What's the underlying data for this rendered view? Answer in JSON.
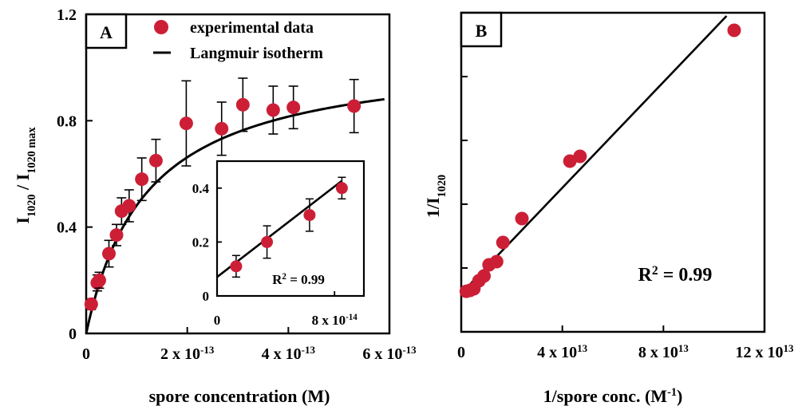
{
  "chart_data": [
    {
      "panel": "A",
      "type": "scatter",
      "xlabel": "spore concentration (M)",
      "ylabel_main": "I",
      "ylabel_sub1": "1020",
      "ylabel_sep": " / I",
      "ylabel_sub2": "1020 max",
      "xlim": [
        0,
        6e-13
      ],
      "ylim": [
        0,
        1.2
      ],
      "x_ticks": [
        {
          "v": 0,
          "m": "0",
          "e": ""
        },
        {
          "v": 2e-13,
          "m": "2 x 10",
          "e": "-13"
        },
        {
          "v": 4e-13,
          "m": "4 x 10",
          "e": "-13"
        },
        {
          "v": 6e-13,
          "m": "6 x 10",
          "e": "-13"
        }
      ],
      "y_ticks": [
        {
          "v": 0,
          "label": "0"
        },
        {
          "v": 0.4,
          "label": "0.4"
        },
        {
          "v": 0.8,
          "label": "0.8"
        },
        {
          "v": 1.2,
          "label": "1.2"
        }
      ],
      "series": [
        {
          "name": "experimental data",
          "color": "#cc1f36",
          "points": [
            {
              "x": 1e-14,
              "y": 0.11,
              "err": 0.02
            },
            {
              "x": 2.2e-14,
              "y": 0.19,
              "err": 0.03
            },
            {
              "x": 2.6e-14,
              "y": 0.2,
              "err": 0.03
            },
            {
              "x": 4.5e-14,
              "y": 0.3,
              "err": 0.05
            },
            {
              "x": 6e-14,
              "y": 0.37,
              "err": 0.04
            },
            {
              "x": 7e-14,
              "y": 0.46,
              "err": 0.05
            },
            {
              "x": 8.5e-14,
              "y": 0.48,
              "err": 0.06
            },
            {
              "x": 1.1e-13,
              "y": 0.58,
              "err": 0.08
            },
            {
              "x": 1.38e-13,
              "y": 0.65,
              "err": 0.08
            },
            {
              "x": 1.98e-13,
              "y": 0.79,
              "err": 0.16
            },
            {
              "x": 2.68e-13,
              "y": 0.77,
              "err": 0.1
            },
            {
              "x": 3.1e-13,
              "y": 0.86,
              "err": 0.1
            },
            {
              "x": 3.7e-13,
              "y": 0.84,
              "err": 0.09
            },
            {
              "x": 4.1e-13,
              "y": 0.85,
              "err": 0.08
            },
            {
              "x": 5.3e-13,
              "y": 0.855,
              "err": 0.1
            }
          ]
        },
        {
          "name": "Langmuir isotherm",
          "kind": "fit",
          "model": "Bmax*x/(K+x)",
          "Bmax": 1.06,
          "K": 1.2e-13,
          "x_range": [
            0,
            5.9e-13
          ]
        }
      ],
      "inset": {
        "xlim": [
          0,
          1e-13
        ],
        "ylim": [
          0,
          0.5
        ],
        "x_ticks": [
          {
            "v": 0,
            "m": "0",
            "e": ""
          },
          {
            "v": 8e-14,
            "m": "8 x 10",
            "e": "-14"
          }
        ],
        "y_ticks": [
          {
            "v": 0,
            "label": "0"
          },
          {
            "v": 0.2,
            "label": "0.2"
          },
          {
            "v": 0.4,
            "label": "0.4"
          }
        ],
        "points": [
          {
            "x": 1.3e-14,
            "y": 0.11,
            "err": 0.04
          },
          {
            "x": 3.4e-14,
            "y": 0.2,
            "err": 0.06
          },
          {
            "x": 6.3e-14,
            "y": 0.3,
            "err": 0.06
          },
          {
            "x": 8.5e-14,
            "y": 0.4,
            "err": 0.04
          }
        ],
        "fit": {
          "slope": 4200000000000.0,
          "intercept": 0.07
        },
        "r2_label": "R",
        "r2_exp": "2",
        "r2_value": " = 0.99"
      }
    },
    {
      "panel": "B",
      "type": "scatter",
      "xlabel_main": "1/spore conc. (M",
      "xlabel_exp": "-1",
      "xlabel_close": ")",
      "ylabel_main": "1/I",
      "ylabel_sub": "1020",
      "xlim": [
        0,
        120000000000000.0
      ],
      "x_ticks": [
        {
          "v": 0,
          "m": "0",
          "e": ""
        },
        {
          "v": 40000000000000.0,
          "m": "4 x 10",
          "e": "13"
        },
        {
          "v": 80000000000000.0,
          "m": "8 x 10",
          "e": "13"
        },
        {
          "v": 120000000000000.0,
          "m": "12 x 10",
          "e": "13"
        }
      ],
      "y_relative_range": [
        0,
        1
      ],
      "y_minor_ticks": [
        0,
        0.2,
        0.4,
        0.6,
        0.8,
        1.0
      ],
      "points": [
        {
          "x": 2000000000000.0,
          "y": 0.127
        },
        {
          "x": 3500000000000.0,
          "y": 0.13
        },
        {
          "x": 5000000000000.0,
          "y": 0.135
        },
        {
          "x": 7000000000000.0,
          "y": 0.16
        },
        {
          "x": 9000000000000.0,
          "y": 0.175
        },
        {
          "x": 11000000000000.0,
          "y": 0.21
        },
        {
          "x": 14000000000000.0,
          "y": 0.22
        },
        {
          "x": 16500000000000.0,
          "y": 0.28
        },
        {
          "x": 24000000000000.0,
          "y": 0.355
        },
        {
          "x": 43000000000000.0,
          "y": 0.535
        },
        {
          "x": 47000000000000.0,
          "y": 0.55
        },
        {
          "x": 108000000000000.0,
          "y": 0.945
        }
      ],
      "fit": {
        "x0": 0,
        "y0": 0.12,
        "x1": 105000000000000.0,
        "y1": 0.99
      },
      "r2_label": "R",
      "r2_exp": "2",
      "r2_value": " = 0.99"
    }
  ],
  "panel_a_label": "A",
  "panel_b_label": "B",
  "legend": {
    "marker_label": "experimental data",
    "line_label": "Langmuir isotherm",
    "marker_color": "#cc1f36"
  }
}
